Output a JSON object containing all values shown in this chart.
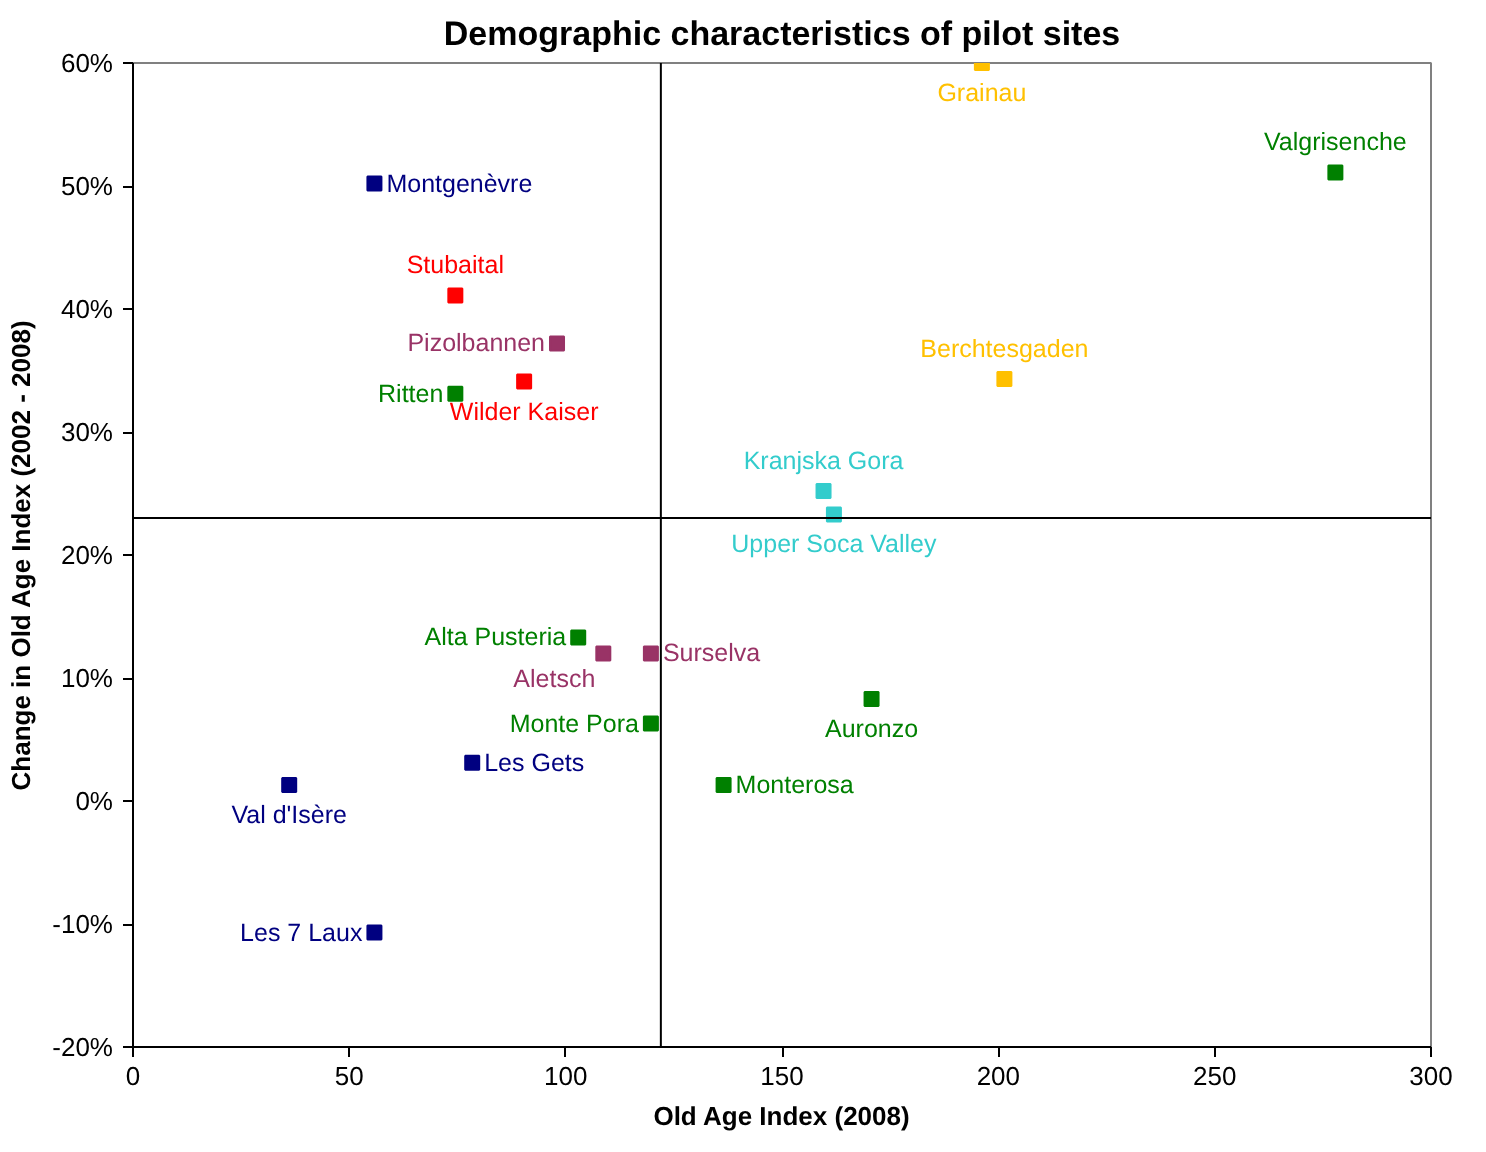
{
  "chart_data": {
    "type": "scatter",
    "title": "Demographic characteristics of pilot sites",
    "xlabel": "Old Age Index (2008)",
    "ylabel": "Change in Old Age Index (2002 - 2008)",
    "xlim": [
      0,
      300
    ],
    "xticks": [
      0,
      50,
      100,
      150,
      200,
      250,
      300
    ],
    "ylim": [
      -20,
      60
    ],
    "yticks": [
      {
        "value": -20,
        "label": "-20%"
      },
      {
        "value": -10,
        "label": "-10%"
      },
      {
        "value": 0,
        "label": "0%"
      },
      {
        "value": 10,
        "label": "10%"
      },
      {
        "value": 20,
        "label": "20%"
      },
      {
        "value": 30,
        "label": "30%"
      },
      {
        "value": 40,
        "label": "40%"
      },
      {
        "value": 50,
        "label": "50%"
      },
      {
        "value": 60,
        "label": "60%"
      }
    ],
    "grid": false,
    "marker": "square",
    "ref_lines": [
      {
        "axis": "x",
        "value": 122,
        "color": "#000000"
      },
      {
        "axis": "y",
        "value": 23,
        "color": "#000000"
      }
    ],
    "series": [
      {
        "color": "#000080",
        "x": [
          55.8,
          36.1,
          78.4,
          55.8
        ],
        "values": [
          50.2,
          1.3,
          3.1,
          -10.7
        ],
        "value_labels": [
          "Montgenèvre",
          "Val d'Isère",
          "Les Gets",
          "Les 7 Laux"
        ]
      },
      {
        "color": "#ff0000",
        "x": [
          74.5,
          90.4
        ],
        "values": [
          41.1,
          34.1
        ],
        "value_labels": [
          "Stubaital",
          "Wilder Kaiser"
        ]
      },
      {
        "color": "#993366",
        "x": [
          98,
          108.7,
          119.7
        ],
        "values": [
          37.2,
          12,
          12
        ],
        "value_labels": [
          "Pizolbannen",
          "Aletsch",
          "Surselva"
        ]
      },
      {
        "color": "#008000",
        "x": [
          277.9,
          74.5,
          102.9,
          119.7,
          170.7,
          136.5
        ],
        "values": [
          51.1,
          33.1,
          13.3,
          6.3,
          8.3,
          1.3
        ],
        "value_labels": [
          "Valgrisenche",
          "Ritten",
          "Alta Pusteria",
          "Monte Pora",
          "Auronzo",
          "Monterosa"
        ]
      },
      {
        "color": "#ffc000",
        "x": [
          196.2,
          201.4
        ],
        "values": [
          60,
          34.3
        ],
        "value_labels": [
          "Grainau",
          "Berchtesgaden"
        ]
      },
      {
        "color": "#33cccc",
        "x": [
          159.6,
          162
        ],
        "values": [
          25.2,
          23.3
        ],
        "value_labels": [
          "Kranjska Gora",
          "Upper Soca Valley"
        ]
      }
    ]
  }
}
